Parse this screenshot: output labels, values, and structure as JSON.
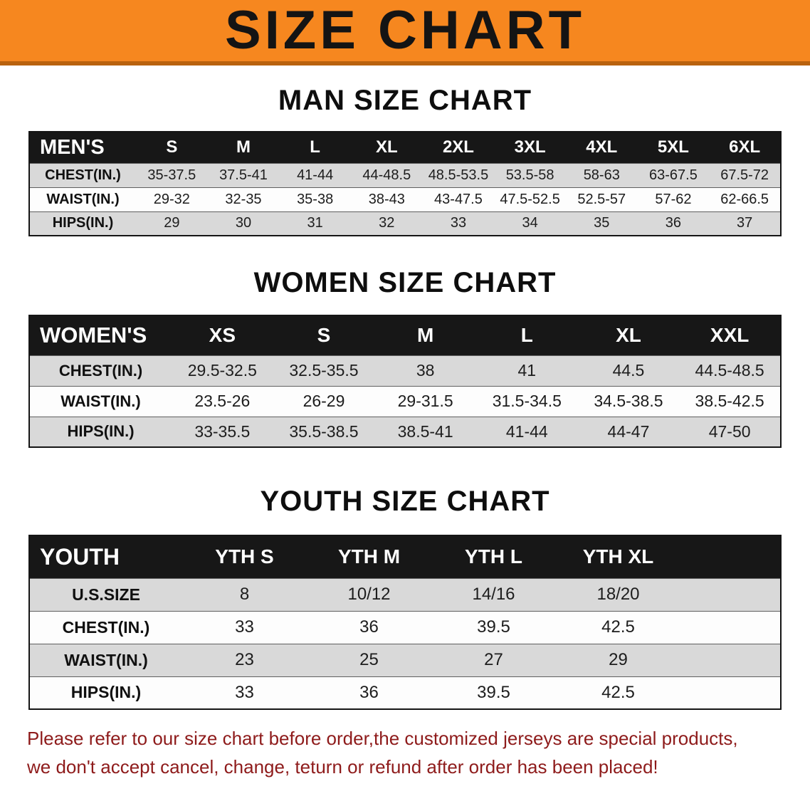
{
  "banner": {
    "title": "SIZE CHART"
  },
  "colors": {
    "banner_orange": "#f6871f",
    "banner_edge": "#b9620f",
    "header_black": "#171717",
    "stripe_gray": "#d9d9d9",
    "footer_red": "#8e1b1b"
  },
  "sections": [
    {
      "heading": "MAN SIZE CHART",
      "table": {
        "header": [
          "MEN'S",
          "S",
          "M",
          "L",
          "XL",
          "2XL",
          "3XL",
          "4XL",
          "5XL",
          "6XL"
        ],
        "rows": [
          [
            "CHEST(IN.)",
            "35-37.5",
            "37.5-41",
            "41-44",
            "44-48.5",
            "48.5-53.5",
            "53.5-58",
            "58-63",
            "63-67.5",
            "67.5-72"
          ],
          [
            "WAIST(IN.)",
            "29-32",
            "32-35",
            "35-38",
            "38-43",
            "43-47.5",
            "47.5-52.5",
            "52.5-57",
            "57-62",
            "62-66.5"
          ],
          [
            "HIPS(IN.)",
            "29",
            "30",
            "31",
            "32",
            "33",
            "34",
            "35",
            "36",
            "37"
          ]
        ]
      }
    },
    {
      "heading": "WOMEN SIZE CHART",
      "table": {
        "header": [
          "WOMEN'S",
          "XS",
          "S",
          "M",
          "L",
          "XL",
          "XXL"
        ],
        "rows": [
          [
            "CHEST(IN.)",
            "29.5-32.5",
            "32.5-35.5",
            "38",
            "41",
            "44.5",
            "44.5-48.5"
          ],
          [
            "WAIST(IN.)",
            "23.5-26",
            "26-29",
            "29-31.5",
            "31.5-34.5",
            "34.5-38.5",
            "38.5-42.5"
          ],
          [
            "HIPS(IN.)",
            "33-35.5",
            "35.5-38.5",
            "38.5-41",
            "41-44",
            "44-47",
            "47-50"
          ]
        ]
      }
    },
    {
      "heading": "YOUTH SIZE CHART",
      "table": {
        "header": [
          "YOUTH",
          "YTH S",
          "YTH M",
          "YTH L",
          "YTH XL"
        ],
        "rows": [
          [
            "U.S.SIZE",
            "8",
            "10/12",
            "14/16",
            "18/20"
          ],
          [
            "CHEST(IN.)",
            "33",
            "36",
            "39.5",
            "42.5"
          ],
          [
            "WAIST(IN.)",
            "23",
            "25",
            "27",
            "29"
          ],
          [
            "HIPS(IN.)",
            "33",
            "36",
            "39.5",
            "42.5"
          ]
        ]
      }
    }
  ],
  "footer": {
    "lines": [
      "Please refer to our size chart before order,the customized jerseys are special products,",
      "we don't accept cancel, change, teturn or refund after order has been placed!"
    ]
  }
}
